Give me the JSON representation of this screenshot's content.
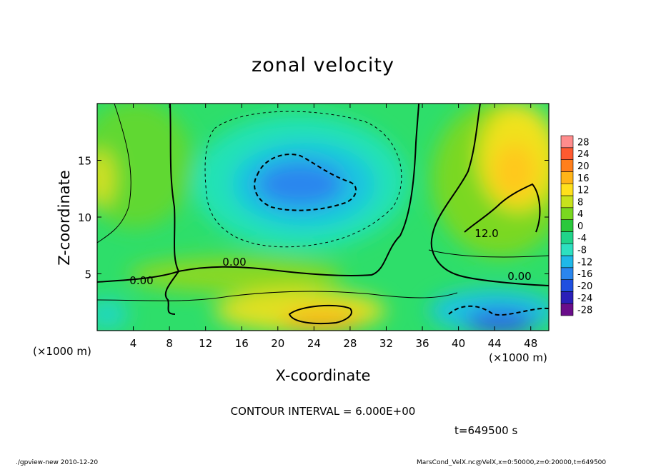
{
  "chart_data": {
    "type": "heatmap",
    "title": "zonal velocity",
    "xlabel": "X-coordinate",
    "ylabel": "Z-coordinate",
    "x_unit": "(×1000 m)",
    "xlim": [
      0,
      50
    ],
    "ylim": [
      0,
      20
    ],
    "x_ticks": [
      "4",
      "8",
      "12",
      "16",
      "20",
      "24",
      "28",
      "32",
      "36",
      "40",
      "44",
      "48"
    ],
    "y_ticks": [
      "5",
      "10",
      "15"
    ],
    "colorbar_levels": [
      "-28",
      "-24",
      "-20",
      "-16",
      "-12",
      "-8",
      "-4",
      "0",
      "4",
      "8",
      "12",
      "16",
      "20",
      "24",
      "28"
    ],
    "colorbar_colors": [
      "#6a0d8a",
      "#2a1fb8",
      "#1f4fe0",
      "#2a86ee",
      "#1fb8e8",
      "#2ee0c0",
      "#21d48a",
      "#2ac83c",
      "#7ad820",
      "#c8e21c",
      "#ffe01c",
      "#ffb418",
      "#ff7f1c",
      "#ff5a30",
      "#ff8c8c"
    ],
    "contour_labels": [
      "0.00",
      "0.00",
      "0.00",
      "12.0"
    ],
    "contour_interval": "CONTOUR INTERVAL = 6.000E+00",
    "time": "t=649500 s",
    "field_regions": [
      {
        "name": "upper-jet-core",
        "x": 22,
        "z": 13,
        "value": -12
      },
      {
        "name": "upper-right-eastward",
        "x": 45,
        "z": 14,
        "value": 12
      },
      {
        "name": "surface-eastward",
        "x": 24,
        "z": 1,
        "value": 16
      },
      {
        "name": "surface-westward",
        "x": 44,
        "z": 1,
        "value": -14
      },
      {
        "name": "left-edge",
        "x": 0.5,
        "z": 14,
        "value": 8
      }
    ]
  },
  "footer": {
    "left": "./gpview-new   2010-12-20",
    "right": "MarsCond_VelX.nc@VelX,x=0:50000,z=0:20000,t=649500"
  }
}
